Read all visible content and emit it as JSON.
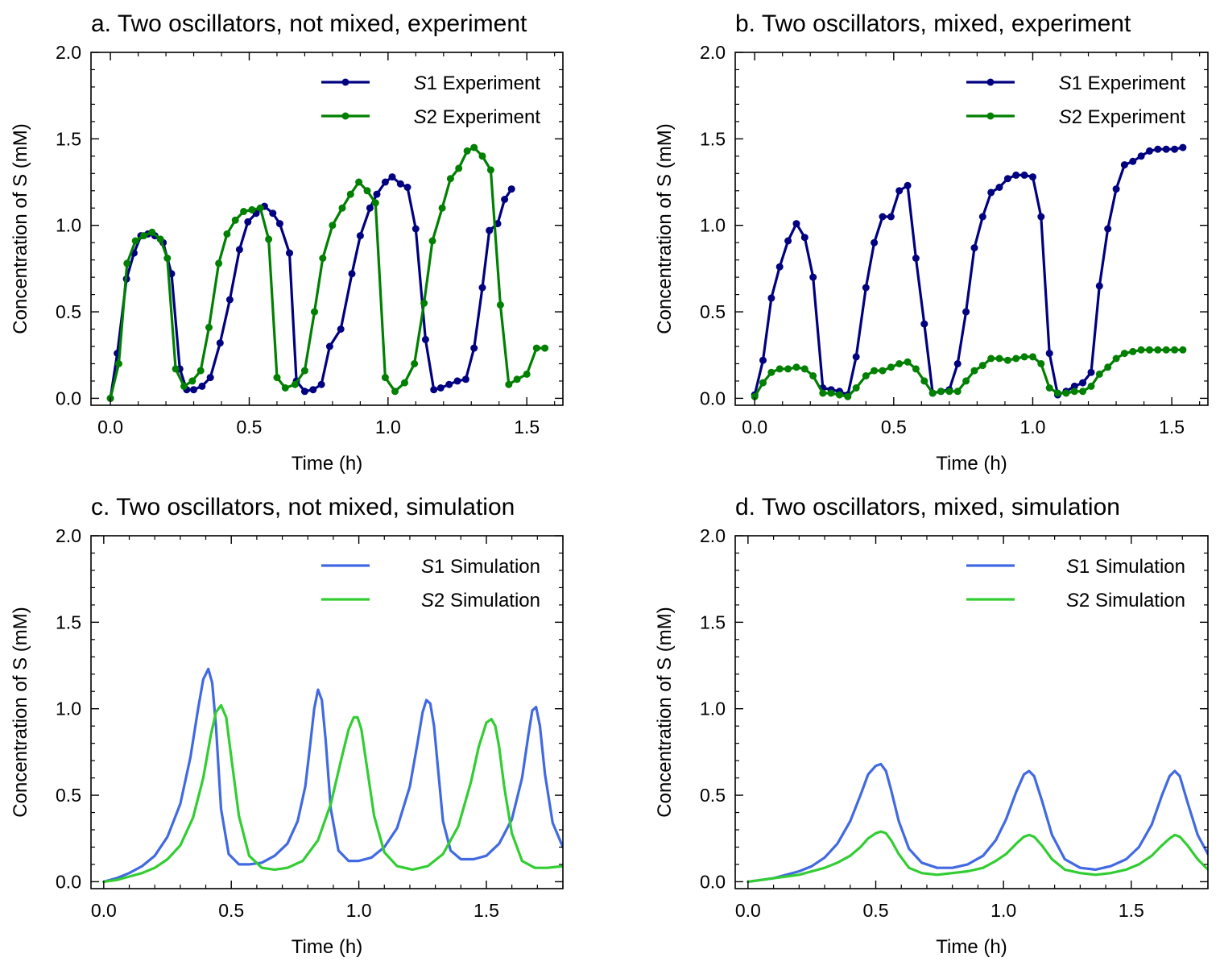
{
  "chart_data": [
    {
      "id": "a",
      "type": "line",
      "title": "a. Two oscillators, not mixed, experiment",
      "xlabel": "Time (h)",
      "ylabel": "Concentration of S (mM)",
      "xlim": [
        -0.07,
        1.63
      ],
      "ylim": [
        -0.04,
        2.0
      ],
      "xticks": [
        0.0,
        0.5,
        1.0,
        1.5
      ],
      "xtick_labels": [
        "0.0",
        "0.5",
        "1.0",
        "1.5"
      ],
      "yticks": [
        0.0,
        0.5,
        1.0,
        1.5,
        2.0
      ],
      "ytick_labels": [
        "0.0",
        "0.5",
        "1.0",
        "1.5",
        "2.0"
      ],
      "legend": "top-right",
      "markers": true,
      "series": [
        {
          "name": "S1 Experiment",
          "italic": "S",
          "rest": "1 Experiment",
          "color": "#000080",
          "x": [
            0.0,
            0.025,
            0.058,
            0.085,
            0.11,
            0.135,
            0.16,
            0.19,
            0.22,
            0.25,
            0.275,
            0.3,
            0.33,
            0.36,
            0.395,
            0.43,
            0.465,
            0.495,
            0.525,
            0.555,
            0.585,
            0.61,
            0.645,
            0.67,
            0.7,
            0.73,
            0.76,
            0.79,
            0.83,
            0.87,
            0.9,
            0.935,
            0.96,
            0.99,
            1.015,
            1.045,
            1.07,
            1.1,
            1.135,
            1.165,
            1.19,
            1.22,
            1.25,
            1.28,
            1.31,
            1.34,
            1.365,
            1.395,
            1.42,
            1.445
          ],
          "y": [
            0.0,
            0.26,
            0.69,
            0.84,
            0.94,
            0.95,
            0.94,
            0.9,
            0.72,
            0.17,
            0.05,
            0.05,
            0.07,
            0.12,
            0.32,
            0.57,
            0.86,
            1.02,
            1.07,
            1.11,
            1.07,
            1.01,
            0.84,
            0.1,
            0.04,
            0.05,
            0.08,
            0.3,
            0.4,
            0.72,
            0.94,
            1.1,
            1.18,
            1.25,
            1.28,
            1.24,
            1.22,
            0.98,
            0.34,
            0.05,
            0.06,
            0.08,
            0.1,
            0.11,
            0.29,
            0.64,
            0.97,
            1.01,
            1.15,
            1.21
          ]
        },
        {
          "name": "S2 Experiment",
          "italic": "S",
          "rest": "2 Experiment",
          "color": "#008000",
          "x": [
            0.0,
            0.03,
            0.06,
            0.09,
            0.12,
            0.15,
            0.18,
            0.205,
            0.235,
            0.265,
            0.295,
            0.325,
            0.355,
            0.39,
            0.42,
            0.45,
            0.48,
            0.51,
            0.54,
            0.57,
            0.6,
            0.63,
            0.665,
            0.7,
            0.735,
            0.765,
            0.8,
            0.835,
            0.865,
            0.895,
            0.925,
            0.955,
            0.99,
            1.025,
            1.06,
            1.095,
            1.13,
            1.16,
            1.195,
            1.225,
            1.255,
            1.285,
            1.31,
            1.34,
            1.37,
            1.405,
            1.435,
            1.465,
            1.5,
            1.535,
            1.565
          ],
          "y": [
            0.0,
            0.2,
            0.78,
            0.91,
            0.94,
            0.96,
            0.92,
            0.81,
            0.17,
            0.07,
            0.1,
            0.16,
            0.41,
            0.78,
            0.95,
            1.03,
            1.08,
            1.09,
            1.1,
            0.92,
            0.12,
            0.06,
            0.08,
            0.16,
            0.5,
            0.81,
            1.0,
            1.1,
            1.18,
            1.25,
            1.2,
            1.13,
            0.12,
            0.04,
            0.09,
            0.2,
            0.55,
            0.91,
            1.1,
            1.27,
            1.33,
            1.43,
            1.45,
            1.4,
            1.32,
            0.54,
            0.08,
            0.11,
            0.14,
            0.29,
            0.29
          ]
        }
      ]
    },
    {
      "id": "b",
      "type": "line",
      "title": "b. Two oscillators, mixed, experiment",
      "xlabel": "Time (h)",
      "ylabel": "Concentration of S (mM)",
      "xlim": [
        -0.07,
        1.63
      ],
      "ylim": [
        -0.04,
        2.0
      ],
      "xticks": [
        0.0,
        0.5,
        1.0,
        1.5
      ],
      "xtick_labels": [
        "0.0",
        "0.5",
        "1.0",
        "1.5"
      ],
      "yticks": [
        0.0,
        0.5,
        1.0,
        1.5,
        2.0
      ],
      "ytick_labels": [
        "0.0",
        "0.5",
        "1.0",
        "1.5",
        "2.0"
      ],
      "legend": "top-right",
      "markers": true,
      "series": [
        {
          "name": "S1 Experiment",
          "italic": "S",
          "rest": "1 Experiment",
          "color": "#000080",
          "x": [
            0.0,
            0.03,
            0.06,
            0.09,
            0.12,
            0.15,
            0.18,
            0.21,
            0.245,
            0.275,
            0.305,
            0.335,
            0.365,
            0.4,
            0.43,
            0.46,
            0.49,
            0.52,
            0.55,
            0.58,
            0.61,
            0.64,
            0.67,
            0.7,
            0.73,
            0.76,
            0.79,
            0.82,
            0.85,
            0.88,
            0.91,
            0.94,
            0.97,
            1.0,
            1.03,
            1.06,
            1.09,
            1.12,
            1.15,
            1.18,
            1.21,
            1.24,
            1.27,
            1.3,
            1.33,
            1.36,
            1.39,
            1.42,
            1.45,
            1.48,
            1.51,
            1.54
          ],
          "y": [
            0.02,
            0.22,
            0.58,
            0.76,
            0.91,
            1.01,
            0.93,
            0.7,
            0.06,
            0.05,
            0.04,
            0.02,
            0.24,
            0.64,
            0.9,
            1.05,
            1.05,
            1.2,
            1.23,
            0.81,
            0.43,
            0.03,
            0.04,
            0.05,
            0.2,
            0.5,
            0.87,
            1.05,
            1.19,
            1.22,
            1.27,
            1.29,
            1.29,
            1.28,
            1.05,
            0.26,
            0.02,
            0.04,
            0.07,
            0.09,
            0.15,
            0.65,
            0.98,
            1.21,
            1.35,
            1.37,
            1.4,
            1.43,
            1.44,
            1.44,
            1.44,
            1.45
          ]
        },
        {
          "name": "S2 Experiment",
          "italic": "S",
          "rest": "2 Experiment",
          "color": "#008000",
          "x": [
            0.0,
            0.03,
            0.06,
            0.09,
            0.12,
            0.15,
            0.18,
            0.21,
            0.245,
            0.275,
            0.305,
            0.335,
            0.365,
            0.4,
            0.43,
            0.46,
            0.49,
            0.52,
            0.55,
            0.58,
            0.61,
            0.64,
            0.67,
            0.7,
            0.73,
            0.76,
            0.79,
            0.82,
            0.85,
            0.88,
            0.91,
            0.94,
            0.97,
            1.0,
            1.03,
            1.06,
            1.09,
            1.12,
            1.15,
            1.18,
            1.21,
            1.24,
            1.27,
            1.3,
            1.33,
            1.36,
            1.39,
            1.42,
            1.45,
            1.48,
            1.51,
            1.54
          ],
          "y": [
            0.01,
            0.09,
            0.15,
            0.17,
            0.17,
            0.18,
            0.17,
            0.13,
            0.03,
            0.03,
            0.02,
            0.01,
            0.06,
            0.13,
            0.16,
            0.16,
            0.18,
            0.2,
            0.21,
            0.17,
            0.1,
            0.03,
            0.04,
            0.04,
            0.04,
            0.1,
            0.16,
            0.19,
            0.23,
            0.23,
            0.22,
            0.23,
            0.24,
            0.24,
            0.2,
            0.06,
            0.03,
            0.03,
            0.04,
            0.04,
            0.07,
            0.14,
            0.18,
            0.23,
            0.26,
            0.27,
            0.28,
            0.28,
            0.28,
            0.28,
            0.28,
            0.28
          ]
        }
      ]
    },
    {
      "id": "c",
      "type": "line",
      "title": "c. Two oscillators, not mixed, simulation",
      "xlabel": "Time (h)",
      "ylabel": "Concentration of S (mM)",
      "xlim": [
        -0.05,
        1.8
      ],
      "ylim": [
        -0.04,
        2.0
      ],
      "xticks": [
        0.0,
        0.5,
        1.0,
        1.5
      ],
      "xtick_labels": [
        "0.0",
        "0.5",
        "1.0",
        "1.5"
      ],
      "yticks": [
        0.0,
        0.5,
        1.0,
        1.5,
        2.0
      ],
      "ytick_labels": [
        "0.0",
        "0.5",
        "1.0",
        "1.5",
        "2.0"
      ],
      "legend": "top-right",
      "markers": false,
      "series": [
        {
          "name": "S1 Simulation",
          "italic": "S",
          "rest": "1 Simulation",
          "color": "#4169e1",
          "x": [
            0.0,
            0.05,
            0.1,
            0.15,
            0.2,
            0.25,
            0.3,
            0.34,
            0.37,
            0.39,
            0.41,
            0.425,
            0.44,
            0.46,
            0.49,
            0.53,
            0.57,
            0.62,
            0.67,
            0.72,
            0.76,
            0.79,
            0.81,
            0.825,
            0.84,
            0.855,
            0.87,
            0.89,
            0.92,
            0.96,
            1.0,
            1.05,
            1.1,
            1.15,
            1.2,
            1.23,
            1.25,
            1.265,
            1.28,
            1.295,
            1.31,
            1.33,
            1.36,
            1.4,
            1.45,
            1.5,
            1.55,
            1.6,
            1.64,
            1.665,
            1.68,
            1.695,
            1.71,
            1.73,
            1.76,
            1.8
          ],
          "y": [
            0.0,
            0.02,
            0.05,
            0.09,
            0.15,
            0.26,
            0.45,
            0.72,
            1.0,
            1.17,
            1.23,
            1.15,
            0.9,
            0.42,
            0.16,
            0.1,
            0.1,
            0.11,
            0.15,
            0.22,
            0.35,
            0.55,
            0.8,
            1.0,
            1.11,
            1.05,
            0.82,
            0.42,
            0.18,
            0.12,
            0.12,
            0.14,
            0.2,
            0.31,
            0.55,
            0.8,
            0.98,
            1.05,
            1.03,
            0.9,
            0.66,
            0.35,
            0.18,
            0.13,
            0.13,
            0.15,
            0.22,
            0.36,
            0.6,
            0.85,
            0.99,
            1.01,
            0.9,
            0.62,
            0.34,
            0.2
          ]
        },
        {
          "name": "S2 Simulation",
          "italic": "S",
          "rest": "2 Simulation",
          "color": "#32cd32",
          "x": [
            0.0,
            0.05,
            0.1,
            0.15,
            0.2,
            0.25,
            0.3,
            0.35,
            0.39,
            0.42,
            0.44,
            0.46,
            0.48,
            0.5,
            0.53,
            0.57,
            0.62,
            0.67,
            0.72,
            0.78,
            0.84,
            0.89,
            0.93,
            0.96,
            0.98,
            0.995,
            1.01,
            1.03,
            1.06,
            1.1,
            1.15,
            1.21,
            1.27,
            1.33,
            1.39,
            1.44,
            1.47,
            1.5,
            1.52,
            1.535,
            1.55,
            1.57,
            1.6,
            1.64,
            1.69,
            1.74,
            1.8
          ],
          "y": [
            0.0,
            0.01,
            0.03,
            0.05,
            0.08,
            0.13,
            0.21,
            0.37,
            0.6,
            0.85,
            0.98,
            1.02,
            0.95,
            0.72,
            0.38,
            0.15,
            0.08,
            0.07,
            0.08,
            0.12,
            0.24,
            0.45,
            0.7,
            0.88,
            0.95,
            0.95,
            0.88,
            0.68,
            0.38,
            0.17,
            0.09,
            0.07,
            0.09,
            0.16,
            0.32,
            0.58,
            0.78,
            0.92,
            0.94,
            0.9,
            0.78,
            0.55,
            0.28,
            0.12,
            0.08,
            0.08,
            0.09
          ]
        }
      ]
    },
    {
      "id": "d",
      "type": "line",
      "title": "d. Two oscillators, mixed, simulation",
      "xlabel": "Time (h)",
      "ylabel": "Concentration of S (mM)",
      "xlim": [
        -0.05,
        1.8
      ],
      "ylim": [
        -0.04,
        2.0
      ],
      "xticks": [
        0.0,
        0.5,
        1.0,
        1.5
      ],
      "xtick_labels": [
        "0.0",
        "0.5",
        "1.0",
        "1.5"
      ],
      "yticks": [
        0.0,
        0.5,
        1.0,
        1.5,
        2.0
      ],
      "ytick_labels": [
        "0.0",
        "0.5",
        "1.0",
        "1.5",
        "2.0"
      ],
      "legend": "top-right",
      "markers": false,
      "series": [
        {
          "name": "S1 Simulation",
          "italic": "S",
          "rest": "1 Simulation",
          "color": "#4169e1",
          "x": [
            0.0,
            0.05,
            0.1,
            0.15,
            0.2,
            0.25,
            0.3,
            0.35,
            0.4,
            0.44,
            0.47,
            0.5,
            0.52,
            0.54,
            0.56,
            0.59,
            0.63,
            0.68,
            0.74,
            0.8,
            0.86,
            0.92,
            0.97,
            1.01,
            1.05,
            1.08,
            1.1,
            1.12,
            1.15,
            1.19,
            1.24,
            1.3,
            1.36,
            1.42,
            1.48,
            1.53,
            1.58,
            1.62,
            1.65,
            1.67,
            1.69,
            1.72,
            1.76,
            1.8
          ],
          "y": [
            0.0,
            0.01,
            0.02,
            0.04,
            0.06,
            0.09,
            0.14,
            0.22,
            0.35,
            0.5,
            0.62,
            0.67,
            0.68,
            0.64,
            0.53,
            0.35,
            0.19,
            0.11,
            0.08,
            0.08,
            0.1,
            0.15,
            0.24,
            0.36,
            0.52,
            0.62,
            0.64,
            0.61,
            0.47,
            0.27,
            0.13,
            0.08,
            0.07,
            0.09,
            0.13,
            0.2,
            0.33,
            0.5,
            0.61,
            0.64,
            0.61,
            0.46,
            0.27,
            0.16
          ]
        },
        {
          "name": "S2 Simulation",
          "italic": "S",
          "rest": "2 Simulation",
          "color": "#32cd32",
          "x": [
            0.0,
            0.05,
            0.1,
            0.15,
            0.2,
            0.25,
            0.3,
            0.35,
            0.4,
            0.44,
            0.47,
            0.5,
            0.52,
            0.54,
            0.56,
            0.59,
            0.63,
            0.68,
            0.74,
            0.8,
            0.86,
            0.92,
            0.97,
            1.01,
            1.05,
            1.08,
            1.1,
            1.12,
            1.15,
            1.19,
            1.24,
            1.3,
            1.36,
            1.42,
            1.48,
            1.53,
            1.58,
            1.62,
            1.65,
            1.67,
            1.69,
            1.72,
            1.76,
            1.8
          ],
          "y": [
            0.0,
            0.01,
            0.02,
            0.03,
            0.04,
            0.06,
            0.08,
            0.11,
            0.15,
            0.2,
            0.25,
            0.28,
            0.29,
            0.28,
            0.24,
            0.16,
            0.08,
            0.05,
            0.04,
            0.05,
            0.06,
            0.08,
            0.12,
            0.16,
            0.22,
            0.26,
            0.27,
            0.26,
            0.21,
            0.13,
            0.07,
            0.05,
            0.04,
            0.05,
            0.07,
            0.1,
            0.15,
            0.21,
            0.25,
            0.27,
            0.26,
            0.21,
            0.13,
            0.07
          ]
        }
      ]
    }
  ]
}
